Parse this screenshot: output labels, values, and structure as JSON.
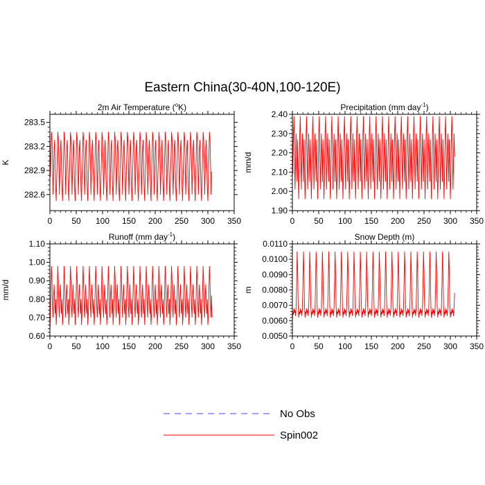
{
  "figure": {
    "title": "Eastern China(30-40N,100-120E)"
  },
  "legend": {
    "placement": "bottom-center",
    "entries": [
      {
        "label": "No Obs",
        "color": "#4040ff",
        "dash": "dashed"
      },
      {
        "label": "Spin002",
        "color": "#ff0000",
        "dash": "solid"
      }
    ]
  },
  "chart_data": [
    {
      "type": "line",
      "title": "2m Air Temperature (",
      "title_sup": "o",
      "title_tail": "K)",
      "ylabel": "K",
      "xlim": [
        0,
        350
      ],
      "ylim": [
        282.4,
        283.6
      ],
      "xticks": [
        0,
        50,
        100,
        150,
        200,
        250,
        300,
        350
      ],
      "xtick_labels": [
        "0",
        "50",
        "100",
        "150",
        "200",
        "250",
        "300",
        "350"
      ],
      "yticks": [
        282.6,
        282.9,
        283.2,
        283.5
      ],
      "ytick_labels": [
        "282.6",
        "282.9",
        "283.2",
        "283.5"
      ],
      "grid": false,
      "series": [
        {
          "name": "Spin002",
          "color": "#ff0000",
          "n_points": 309,
          "period": 12,
          "monthly_cycle": [
            282.52,
            282.82,
            283.08,
            283.38,
            283.3,
            283.0,
            282.6,
            282.88,
            283.18,
            283.28,
            282.95,
            282.68
          ],
          "first_value": 283.47,
          "end_value": 282.88
        }
      ]
    },
    {
      "type": "line",
      "title": "Precipitation (mm day",
      "title_sup": "-1",
      "title_tail": ")",
      "ylabel": "mm/d",
      "xlim": [
        0,
        350
      ],
      "ylim": [
        1.9,
        2.4
      ],
      "xticks": [
        0,
        50,
        100,
        150,
        200,
        250,
        300,
        350
      ],
      "xtick_labels": [
        "0",
        "50",
        "100",
        "150",
        "200",
        "250",
        "300",
        "350"
      ],
      "yticks": [
        1.9,
        2.0,
        2.1,
        2.2,
        2.3,
        2.4
      ],
      "ytick_labels": [
        "1.90",
        "2.00",
        "2.10",
        "2.20",
        "2.30",
        "2.40"
      ],
      "grid": false,
      "series": [
        {
          "name": "Spin002",
          "color": "#ff0000",
          "n_points": 309,
          "period": 12,
          "monthly_cycle": [
            1.96,
            2.09,
            2.3,
            2.39,
            2.22,
            2.01,
            2.15,
            2.3,
            2.18,
            2.05,
            2.27,
            2.12
          ],
          "first_value": 2.37,
          "end_value": 2.18
        }
      ]
    },
    {
      "type": "line",
      "title": "Runoff (mm day",
      "title_sup": "-1",
      "title_tail": ")",
      "ylabel": "mm/d",
      "xlim": [
        0,
        350
      ],
      "ylim": [
        0.6,
        1.1
      ],
      "xticks": [
        0,
        50,
        100,
        150,
        200,
        250,
        300,
        350
      ],
      "xtick_labels": [
        "0",
        "50",
        "100",
        "150",
        "200",
        "250",
        "300",
        "350"
      ],
      "yticks": [
        0.6,
        0.7,
        0.8,
        0.9,
        1.0,
        1.1
      ],
      "ytick_labels": [
        "0.60",
        "0.70",
        "0.80",
        "0.90",
        "1.00",
        "1.10"
      ],
      "grid": false,
      "series": [
        {
          "name": "Spin002",
          "color": "#ff0000",
          "n_points": 309,
          "period": 12,
          "monthly_cycle": [
            0.66,
            0.72,
            0.85,
            0.98,
            0.9,
            0.76,
            0.7,
            0.82,
            0.88,
            0.78,
            0.72,
            0.8
          ],
          "first_value": 0.62,
          "end_value": 0.7
        }
      ]
    },
    {
      "type": "line",
      "title": "Snow Depth (m)",
      "title_sup": "",
      "title_tail": "",
      "ylabel": "m",
      "xlim": [
        0,
        350
      ],
      "ylim": [
        0.005,
        0.011
      ],
      "xticks": [
        0,
        50,
        100,
        150,
        200,
        250,
        300,
        350
      ],
      "xtick_labels": [
        "0",
        "50",
        "100",
        "150",
        "200",
        "250",
        "300",
        "350"
      ],
      "yticks": [
        0.005,
        0.006,
        0.007,
        0.008,
        0.009,
        0.01,
        0.011
      ],
      "ytick_labels": [
        "0.0050",
        "0.0060",
        "0.0070",
        "0.0080",
        "0.0090",
        "0.0100",
        "0.0110"
      ],
      "grid": false,
      "series": [
        {
          "name": "Spin002",
          "color": "#ff0000",
          "n_points": 309,
          "period": 12,
          "monthly_cycle": [
            0.0062,
            0.0066,
            0.0064,
            0.0068,
            0.0065,
            0.0067,
            0.0063,
            0.0068,
            0.0083,
            0.0105,
            0.0092,
            0.007
          ],
          "first_value": 0.006,
          "end_value": 0.0078
        }
      ]
    }
  ]
}
